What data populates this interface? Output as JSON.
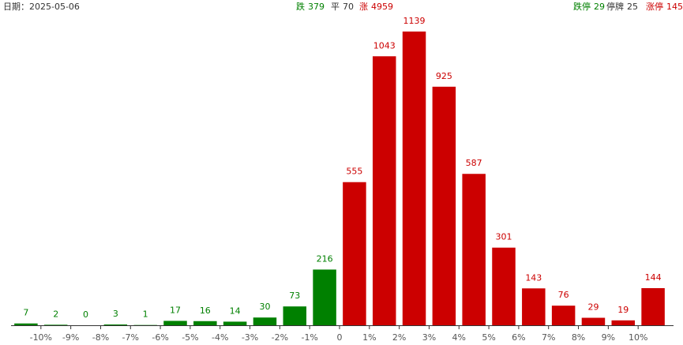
{
  "header": {
    "date": "日期：2025-05-06",
    "summary": [
      {
        "label": "跌",
        "value": 379,
        "color": "#008000"
      },
      {
        "label": "平",
        "value": 70,
        "color": "#333333"
      },
      {
        "label": "涨",
        "value": 4959,
        "color": "#cc0000"
      }
    ],
    "limits": [
      {
        "label": "跌停",
        "value": 29,
        "color": "#008000"
      },
      {
        "label": "停牌",
        "value": 25,
        "color": "#333333"
      },
      {
        "label": "涨停",
        "value": 145,
        "color": "#cc0000"
      }
    ]
  },
  "chart_data": {
    "type": "histogram",
    "bins": [
      -11,
      -10,
      -9,
      -8,
      -7,
      -6,
      -5,
      -4,
      -3,
      -2,
      -1,
      0,
      1,
      2,
      3,
      4,
      5,
      6,
      7,
      8,
      9,
      10,
      11
    ],
    "values": [
      7,
      2,
      0,
      3,
      1,
      17,
      16,
      14,
      30,
      73,
      216,
      555,
      1043,
      1139,
      925,
      587,
      301,
      143,
      76,
      29,
      19,
      144
    ],
    "colors": [
      "#008000",
      "#008000",
      "#008000",
      "#008000",
      "#008000",
      "#008000",
      "#008000",
      "#008000",
      "#008000",
      "#008000",
      "#008000",
      "#cc0000",
      "#cc0000",
      "#cc0000",
      "#cc0000",
      "#cc0000",
      "#cc0000",
      "#cc0000",
      "#cc0000",
      "#cc0000",
      "#cc0000",
      "#cc0000"
    ],
    "xlim": [
      -11,
      11
    ],
    "ylim": [
      0,
      1200
    ],
    "xticks": [
      {
        "value": -10,
        "label": "-10%"
      },
      {
        "value": -9,
        "label": "-9%"
      },
      {
        "value": -8,
        "label": "-8%"
      },
      {
        "value": -7,
        "label": "-7%"
      },
      {
        "value": -6,
        "label": "-6%"
      },
      {
        "value": -5,
        "label": "-5%"
      },
      {
        "value": -4,
        "label": "-4%"
      },
      {
        "value": -3,
        "label": "-3%"
      },
      {
        "value": -2,
        "label": "-2%"
      },
      {
        "value": -1,
        "label": "-1%"
      },
      0,
      {
        "value": 1,
        "label": "1%"
      },
      {
        "value": 2,
        "label": "2%"
      },
      {
        "value": 3,
        "label": "3%"
      },
      {
        "value": 4,
        "label": "4%"
      },
      {
        "value": 5,
        "label": "5%"
      },
      {
        "value": 6,
        "label": "6%"
      },
      {
        "value": 7,
        "label": "7%"
      },
      {
        "value": 8,
        "label": "8%"
      },
      {
        "value": 9,
        "label": "9%"
      },
      {
        "value": 10,
        "label": "10%"
      }
    ]
  }
}
